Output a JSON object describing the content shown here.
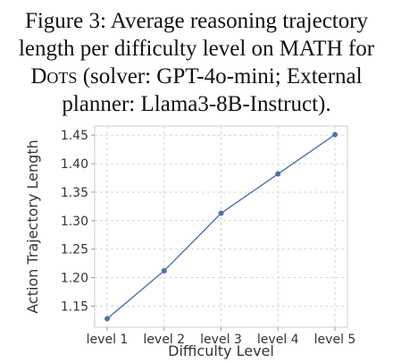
{
  "caption": {
    "prefix": "Figure 3: Average reasoning trajectory",
    "line2": "length per difficulty level on MATH for",
    "dots": "Dots",
    "line3_rest": " (solver: GPT-4o-mini; External",
    "line4": "planner: Llama3-8B-Instruct)."
  },
  "chart_data": {
    "type": "line",
    "categories": [
      "level 1",
      "level 2",
      "level 3",
      "level 4",
      "level 5"
    ],
    "series": [
      {
        "values": [
          1.128,
          1.212,
          1.313,
          1.382,
          1.451
        ],
        "color": "#4c72b0"
      }
    ],
    "xlabel": "Difficulty Level",
    "ylabel": "Action Trajectory Length",
    "yticks": [
      "1.15",
      "1.20",
      "1.25",
      "1.30",
      "1.35",
      "1.40",
      "1.45"
    ],
    "ylim": [
      1.113,
      1.466
    ],
    "grid": true,
    "grid_style": "dashed",
    "marker": "circle",
    "legend": "none"
  }
}
